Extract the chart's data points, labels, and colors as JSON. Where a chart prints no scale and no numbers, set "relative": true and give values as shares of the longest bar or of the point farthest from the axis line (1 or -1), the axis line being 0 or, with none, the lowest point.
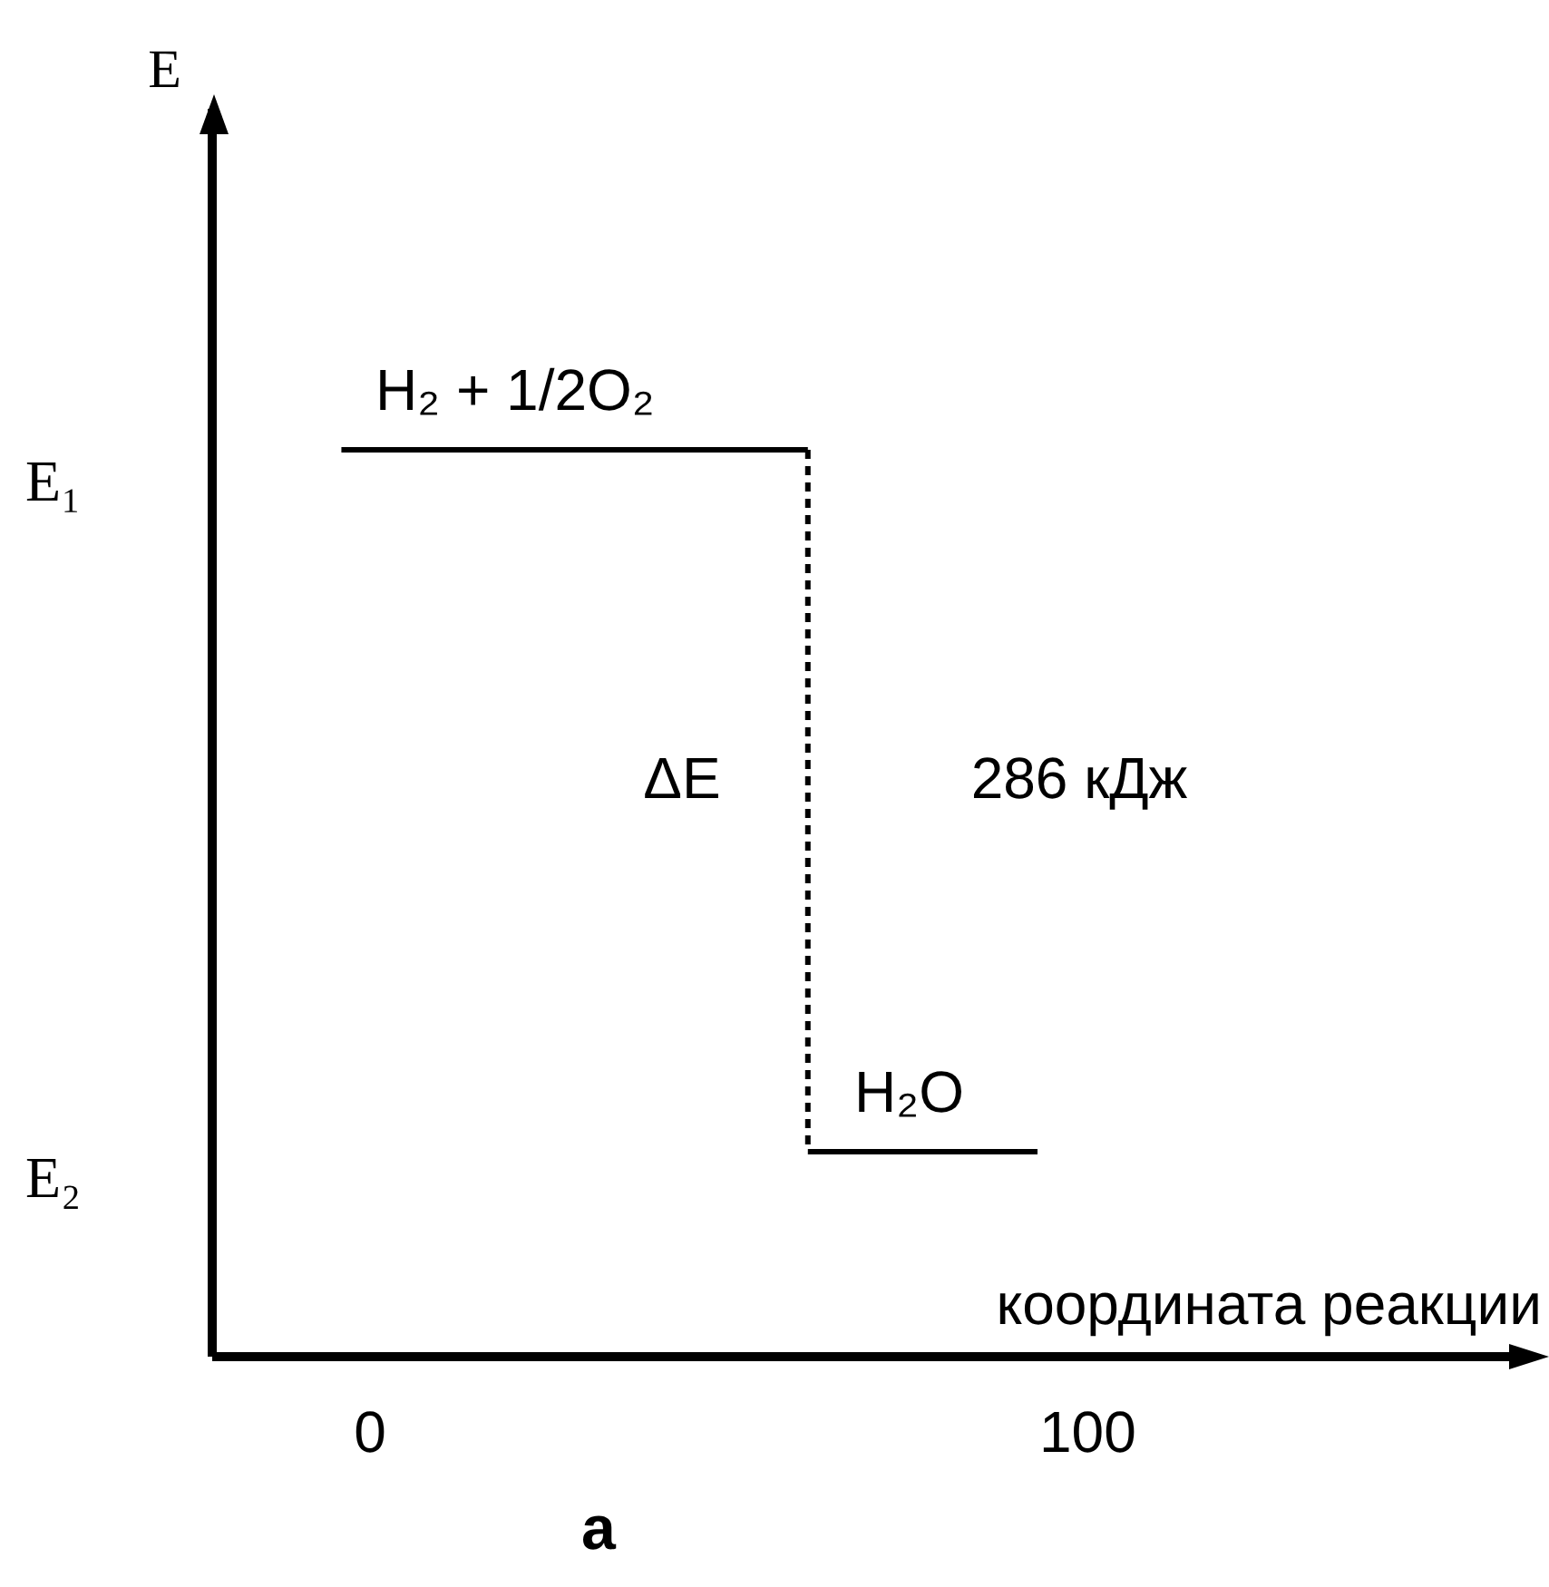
{
  "chart_data": {
    "type": "line",
    "relative": true,
    "xlabel": "координата реакции",
    "xlim": [
      -22,
      162
    ],
    "xticks": [
      0,
      100
    ],
    "series": [
      {
        "color": "#000000",
        "x": [
          -4,
          61
        ],
        "values": [
          1,
          1
        ]
      },
      {
        "color": "#000000",
        "x": [
          61,
          61
        ],
        "values": [
          1,
          0.226
        ],
        "line_style": "dashed"
      },
      {
        "color": "#000000",
        "x": [
          61,
          93
        ],
        "values": [
          0.226,
          0.226
        ]
      }
    ],
    "ref_lines": [
      {
        "axis": "x",
        "value": -22,
        "color": "#000000"
      }
    ],
    "annotations": [
      "E",
      {
        "text": "H₂ + 1/2O₂",
        "x": 20,
        "y": 1
      },
      "E₁",
      "ΔE",
      "286 кДж",
      {
        "text": "H₂O",
        "x": 75,
        "y": 0.226
      },
      "E₂",
      "a"
    ]
  }
}
